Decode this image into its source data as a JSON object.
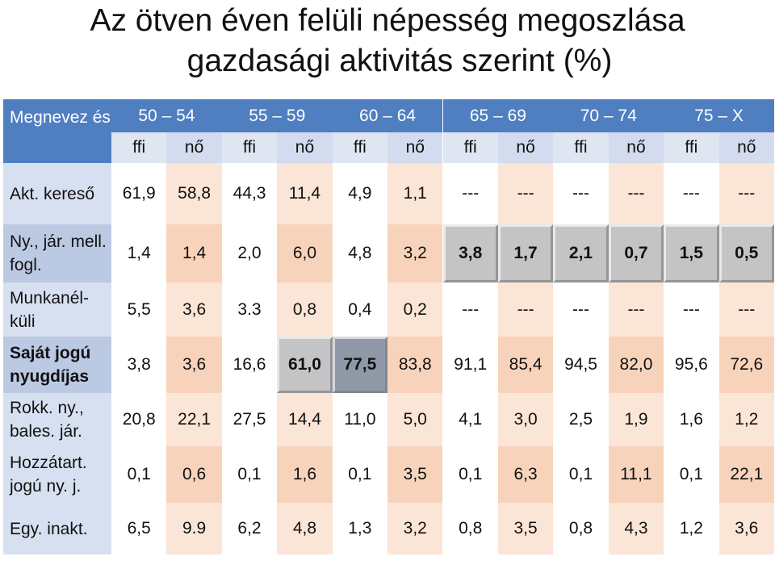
{
  "title": {
    "line1": "Az ötven éven felüli népesség megoszlása",
    "line2": "gazdasági aktivitás szerint (%)"
  },
  "table": {
    "corner_label": "Megnevez és",
    "age_groups": [
      "50 – 54",
      "55 – 59",
      "60 – 64",
      "65 – 69",
      "70 – 74",
      "75 – X"
    ],
    "sexes": [
      "ffi",
      "nő",
      "ffi",
      "nő",
      "ffi",
      "nő",
      "ffi",
      "nő",
      "ffi",
      "nő",
      "ffi",
      "nő"
    ],
    "rows": [
      {
        "label": "Akt. kereső",
        "values": [
          "61,9",
          "58,8",
          "44,3",
          "11,4",
          "4,9",
          "1,1",
          "---",
          "---",
          "---",
          "---",
          "---",
          "---"
        ]
      },
      {
        "label": "Ny., jár. mell.  fogl.",
        "values": [
          "1,4",
          "1,4",
          "2,0",
          "6,0",
          "4,8",
          "3,2",
          "3,8",
          "1,7",
          "2,1",
          "0,7",
          "1,5",
          "0,5"
        ]
      },
      {
        "label": "Munkanél-küli",
        "values": [
          "5,5",
          "3,6",
          "3.3",
          "0,8",
          "0,4",
          "0,2",
          "---",
          "---",
          "---",
          "---",
          "---",
          "---"
        ]
      },
      {
        "label": "Saját jogú nyugdíjas",
        "values": [
          "3,8",
          "3,6",
          "16,6",
          "61,0",
          "77,5",
          "83,8",
          "91,1",
          "85,4",
          "94,5",
          "82,0",
          "95,6",
          "72,6"
        ]
      },
      {
        "label": "Rokk. ny., bales. jár.",
        "values": [
          "20,8",
          "22,1",
          "27,5",
          "14,4",
          "11,0",
          "5,0",
          "4,1",
          "3,0",
          "2,5",
          "1,9",
          "1,6",
          "1,2"
        ]
      },
      {
        "label": "Hozzátart. jogú ny. j.",
        "values": [
          "0,1",
          "0,6",
          "0,1",
          "1,6",
          "0,1",
          "3,5",
          "0,1",
          "6,3",
          "0,1",
          "11,1",
          "0,1",
          "22,1"
        ]
      },
      {
        "label": "Egy. inakt.",
        "values": [
          "6,5",
          "9.9",
          "6,2",
          "4,8",
          "1,3",
          "3,2",
          "0,8",
          "3,5",
          "0,8",
          "4,3",
          "1,2",
          "3,6"
        ]
      }
    ]
  }
}
